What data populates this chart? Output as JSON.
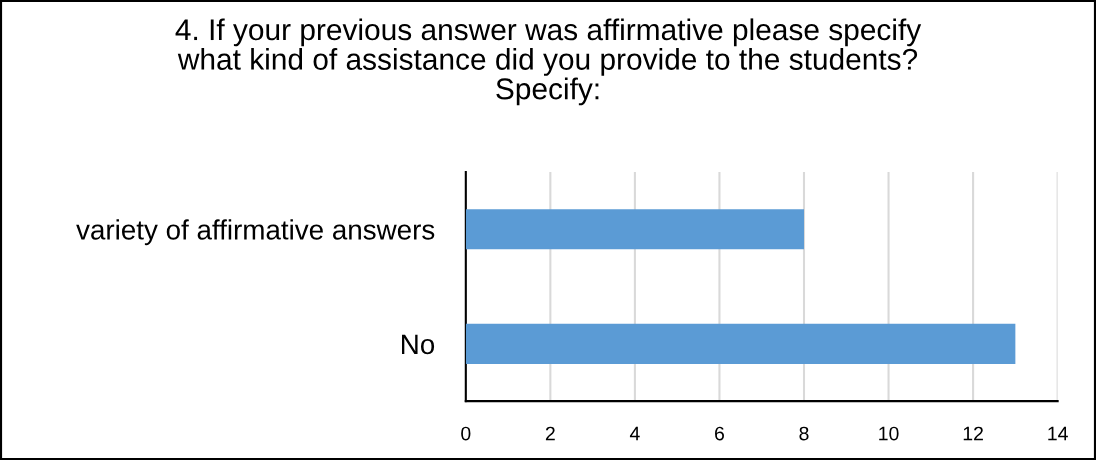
{
  "chart_data": {
    "type": "bar",
    "orientation": "horizontal",
    "title": "4. If your previous answer was affirmative please specify\nwhat kind of assistance did you provide to the students?\nSpecify:",
    "categories": [
      "variety of affirmative answers",
      "No"
    ],
    "values": [
      8,
      13
    ],
    "color": "#5b9bd5",
    "xlim": [
      0,
      14
    ],
    "xticks": [
      0,
      2,
      4,
      6,
      8,
      10,
      12,
      14
    ],
    "grid": "x"
  }
}
